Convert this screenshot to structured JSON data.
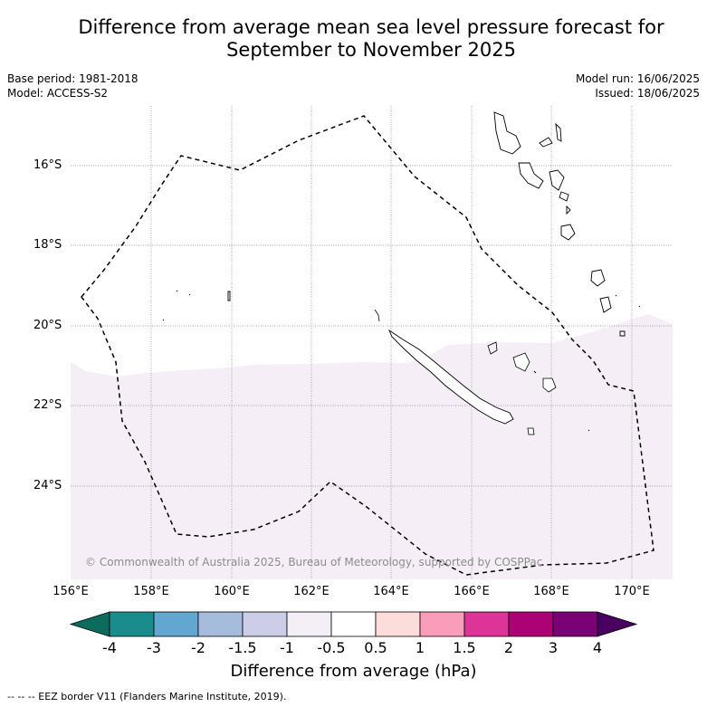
{
  "title": {
    "line1": "Difference from average mean sea level pressure forecast for",
    "line2": "September to November 2025"
  },
  "meta": {
    "base_period": "Base period: 1981-2018",
    "model": "Model: ACCESS-S2",
    "model_run": "Model run: 16/06/2025",
    "issued": "Issued: 18/06/2025"
  },
  "map": {
    "latitude_labels": [
      "16°S",
      "18°S",
      "20°S",
      "22°S",
      "24°S"
    ],
    "longitude_labels": [
      "156°E",
      "158°E",
      "160°E",
      "162°E",
      "164°E",
      "166°E",
      "168°E",
      "170°E"
    ],
    "copyright": "© Commonwealth of Australia 2025, Bureau of Meteorology, supported by COSPPac",
    "shading_color": "#f5eef6",
    "eez_line_color": "#000000"
  },
  "colorbar": {
    "labels": [
      "-4",
      "-3",
      "-2",
      "-1.5",
      "-1",
      "-0.5",
      "0.5",
      "1",
      "1.5",
      "2",
      "3",
      "4"
    ],
    "colors": [
      "#1a8c8c",
      "#62a7cf",
      "#a6bcdc",
      "#cccde6",
      "#f4eef6",
      "#ffffff",
      "#fddcdc",
      "#f99dbb",
      "#dd3597",
      "#ad0176",
      "#7b0177"
    ],
    "under_color": "#0d6b5e",
    "over_color": "#4a0060",
    "title": "Difference from average (hPa)"
  },
  "footnote": "--  --  -- EEZ border V11 (Flanders Marine Institute, 2019)."
}
